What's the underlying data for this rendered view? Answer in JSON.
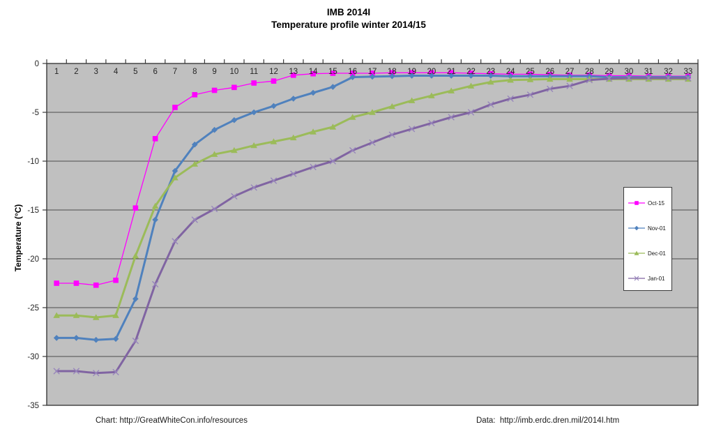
{
  "title": {
    "line1": "IMB 2014I",
    "line2": "Temperature profile winter 2014/15"
  },
  "y_axis_title": "Temperature (°C)",
  "footer": {
    "chart_credit": "Chart: http://GreatWhiteCon.info/resources",
    "data_credit": "Data:  http://imb.erdc.dren.mil/2014I.htm"
  },
  "colors": {
    "page_bg": "#ffffff",
    "plot_bg": "#c0c0c0",
    "gridline": "#4d4d4d",
    "axis": "#3a3a3a",
    "tick_label": "#262626"
  },
  "chart_data": {
    "type": "line",
    "title": "IMB 2014I",
    "subtitle": "Temperature profile winter 2014/15",
    "xlabel": "",
    "ylabel": "Temperature (°C)",
    "grid": true,
    "legend_position": "right-inside",
    "ylim": [
      -35,
      0
    ],
    "yticks": [
      0,
      -5,
      -10,
      -15,
      -20,
      -25,
      -30,
      -35
    ],
    "categories": [
      "1",
      "2",
      "3",
      "4",
      "5",
      "6",
      "7",
      "8",
      "9",
      "10",
      "11",
      "12",
      "13",
      "14",
      "15",
      "16",
      "17",
      "18",
      "19",
      "20",
      "21",
      "22",
      "23",
      "24",
      "25",
      "26",
      "27",
      "28",
      "29",
      "30",
      "31",
      "32",
      "33"
    ],
    "x": [
      1,
      2,
      3,
      4,
      5,
      6,
      7,
      8,
      9,
      10,
      11,
      12,
      13,
      14,
      15,
      16,
      17,
      18,
      19,
      20,
      21,
      22,
      23,
      24,
      25,
      26,
      27,
      28,
      29,
      30,
      31,
      32,
      33
    ],
    "series": [
      {
        "name": "Oct-15",
        "color": "#FF00FF",
        "marker": "square",
        "marker_color": "#FF00FF",
        "line_width": 1.3,
        "values": [
          -22.5,
          -22.5,
          -22.7,
          -22.2,
          -14.8,
          -7.7,
          -4.5,
          -3.2,
          -2.75,
          -2.45,
          -2.0,
          -1.8,
          -1.2,
          -1.05,
          -1.0,
          -1.0,
          -1.0,
          -0.95,
          -0.95,
          -0.95,
          -0.95,
          -1.0,
          -1.05,
          -1.1,
          -1.1,
          -1.15,
          -1.2,
          -1.2,
          -1.25,
          -1.25,
          -1.3,
          -1.3,
          -1.3
        ]
      },
      {
        "name": "Nov-01",
        "color": "#4F81BD",
        "marker": "diamond",
        "marker_color": "#4F81BD",
        "line_width": 3,
        "values": [
          -28.1,
          -28.1,
          -28.3,
          -28.2,
          -24.1,
          -16.0,
          -11.0,
          -8.3,
          -6.8,
          -5.8,
          -5.0,
          -4.35,
          -3.6,
          -3.0,
          -2.4,
          -1.4,
          -1.35,
          -1.3,
          -1.25,
          -1.25,
          -1.25,
          -1.25,
          -1.25,
          -1.3,
          -1.3,
          -1.3,
          -1.3,
          -1.3,
          -1.4,
          -1.4,
          -1.4,
          -1.4,
          -1.4
        ]
      },
      {
        "name": "Dec-01",
        "color": "#9BBB59",
        "marker": "triangle",
        "marker_color": "#9BBB59",
        "line_width": 3,
        "values": [
          -25.8,
          -25.8,
          -26.0,
          -25.8,
          -19.7,
          -14.6,
          -11.7,
          -10.3,
          -9.3,
          -8.9,
          -8.4,
          -8.0,
          -7.6,
          -7.0,
          -6.5,
          -5.5,
          -5.0,
          -4.4,
          -3.8,
          -3.3,
          -2.8,
          -2.3,
          -1.9,
          -1.7,
          -1.65,
          -1.6,
          -1.6,
          -1.6,
          -1.6,
          -1.6,
          -1.6,
          -1.6,
          -1.6
        ]
      },
      {
        "name": "Jan-01",
        "color": "#8064A2",
        "marker": "x",
        "marker_color": "#9886BC",
        "line_width": 3,
        "values": [
          -31.5,
          -31.5,
          -31.7,
          -31.6,
          -28.4,
          -22.6,
          -18.2,
          -16.0,
          -14.9,
          -13.6,
          -12.7,
          -12.0,
          -11.3,
          -10.6,
          -10.0,
          -8.9,
          -8.1,
          -7.3,
          -6.7,
          -6.1,
          -5.5,
          -5.0,
          -4.2,
          -3.6,
          -3.2,
          -2.6,
          -2.3,
          -1.7,
          -1.55,
          -1.5,
          -1.5,
          -1.5,
          -1.5
        ]
      }
    ]
  }
}
